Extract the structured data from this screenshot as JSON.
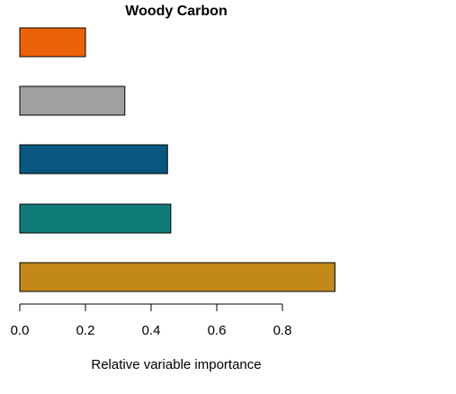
{
  "chart_data": {
    "type": "bar",
    "orientation": "horizontal",
    "title": "Woody Carbon",
    "xlabel": "Relative variable importance",
    "ylabel": "",
    "xlim": [
      0,
      0.8
    ],
    "xticks": [
      0.0,
      0.2,
      0.4,
      0.6,
      0.8
    ],
    "xtick_labels": [
      "0.0",
      "0.2",
      "0.4",
      "0.6",
      "0.8"
    ],
    "categories": [
      "",
      "",
      "",
      "",
      ""
    ],
    "bars_top_to_bottom": [
      {
        "value": 0.2,
        "color": "#EB6209"
      },
      {
        "value": 0.32,
        "color": "#A0A0A0"
      },
      {
        "value": 0.45,
        "color": "#09577E"
      },
      {
        "value": 0.46,
        "color": "#107C78"
      },
      {
        "value": 0.96,
        "color": "#C2881A"
      }
    ],
    "grid": false,
    "legend": "none"
  }
}
